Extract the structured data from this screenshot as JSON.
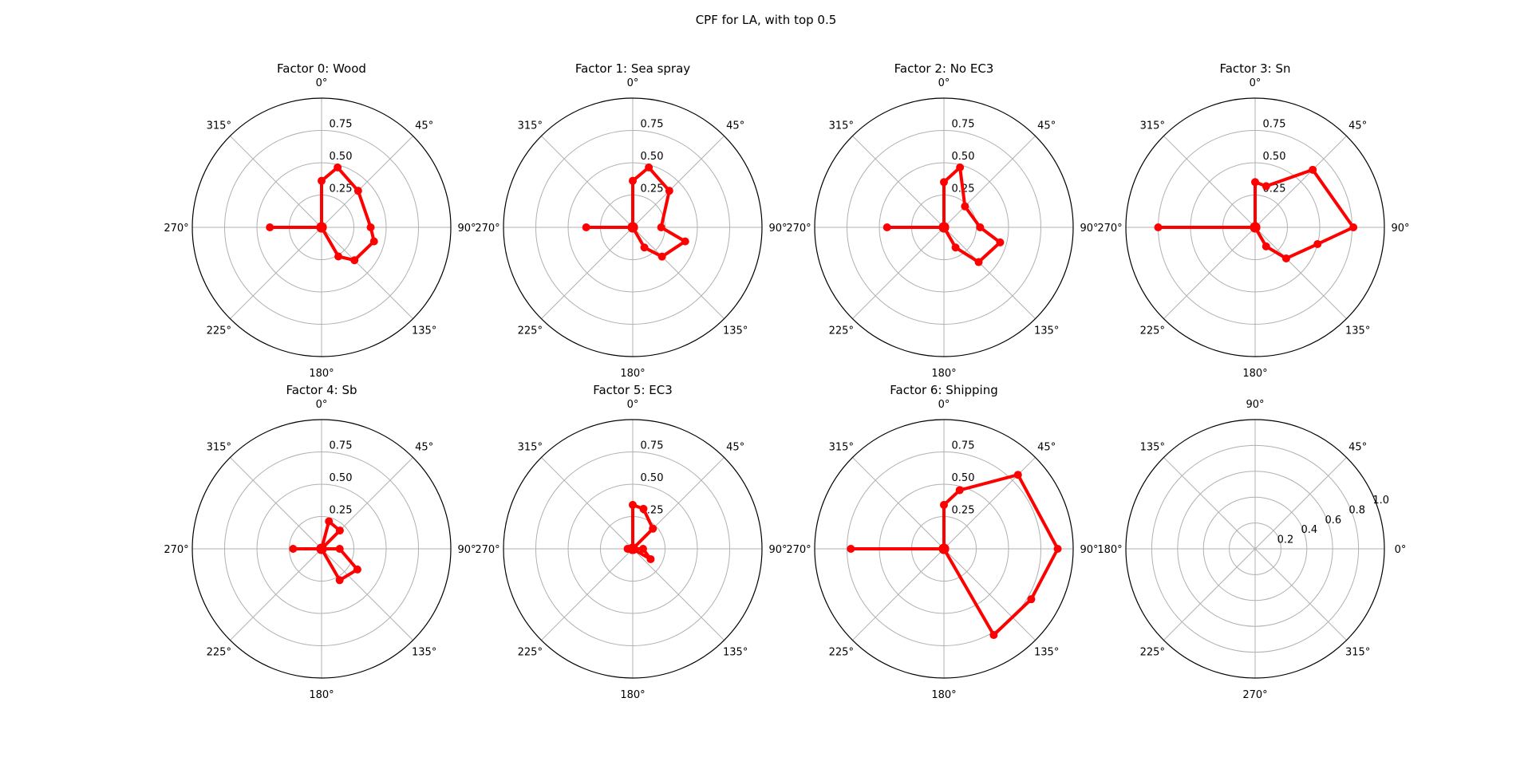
{
  "figure": {
    "title": "CPF for LA, with top 0.5",
    "trace_color": "#ff0000",
    "grid_color": "#b0b0b0",
    "frame_color": "#000000"
  },
  "chart_data": [
    {
      "type": "polar-line",
      "title": "Factor 0: Wood",
      "theta_zero": "N",
      "direction": "clockwise",
      "theta_ticks": [
        "0°",
        "45°",
        "90°",
        "135°",
        "180°",
        "225°",
        "270°",
        "315°"
      ],
      "r_ticks": [
        "0.25",
        "0.50",
        "0.75"
      ],
      "r_tick_values": [
        0.25,
        0.5,
        0.75
      ],
      "r_max": 1.0,
      "theta_deg": [
        0,
        0,
        15,
        45,
        90,
        105,
        135,
        150,
        0,
        270,
        0
      ],
      "r": [
        0,
        0.36,
        0.48,
        0.4,
        0.38,
        0.42,
        0.36,
        0.26,
        0,
        0.4,
        0
      ]
    },
    {
      "type": "polar-line",
      "title": "Factor 1: Sea spray",
      "theta_zero": "N",
      "direction": "clockwise",
      "theta_ticks": [
        "0°",
        "45°",
        "90°",
        "135°",
        "180°",
        "225°",
        "270°",
        "315°"
      ],
      "r_ticks": [
        "0.25",
        "0.50",
        "0.75"
      ],
      "r_tick_values": [
        0.25,
        0.5,
        0.75
      ],
      "r_max": 1.0,
      "theta_deg": [
        0,
        0,
        15,
        45,
        90,
        105,
        135,
        150,
        0,
        270,
        0
      ],
      "r": [
        0,
        0.36,
        0.48,
        0.4,
        0.22,
        0.42,
        0.32,
        0.18,
        0,
        0.36,
        0
      ]
    },
    {
      "type": "polar-line",
      "title": "Factor 2: No EC3",
      "theta_zero": "N",
      "direction": "clockwise",
      "theta_ticks": [
        "0°",
        "45°",
        "90°",
        "135°",
        "180°",
        "225°",
        "270°",
        "315°"
      ],
      "r_ticks": [
        "0.25",
        "0.50",
        "0.75"
      ],
      "r_tick_values": [
        0.25,
        0.5,
        0.75
      ],
      "r_max": 1.0,
      "theta_deg": [
        0,
        0,
        15,
        45,
        90,
        105,
        135,
        150,
        0,
        270,
        0
      ],
      "r": [
        0,
        0.35,
        0.48,
        0.23,
        0.28,
        0.45,
        0.38,
        0.18,
        0,
        0.44,
        0
      ]
    },
    {
      "type": "polar-line",
      "title": "Factor 3: Sn",
      "theta_zero": "N",
      "direction": "clockwise",
      "theta_ticks": [
        "0°",
        "45°",
        "90°",
        "135°",
        "180°",
        "225°",
        "270°",
        "315°"
      ],
      "r_ticks": [
        "0.25",
        "0.50",
        "0.75"
      ],
      "r_tick_values": [
        0.25,
        0.5,
        0.75
      ],
      "r_max": 1.0,
      "theta_deg": [
        0,
        0,
        15,
        45,
        90,
        105,
        135,
        150,
        0,
        270,
        0
      ],
      "r": [
        0,
        0.35,
        0.33,
        0.63,
        0.76,
        0.5,
        0.34,
        0.17,
        0,
        0.75,
        0
      ]
    },
    {
      "type": "polar-line",
      "title": "Factor 4: Sb",
      "theta_zero": "N",
      "direction": "clockwise",
      "theta_ticks": [
        "0°",
        "45°",
        "90°",
        "135°",
        "180°",
        "225°",
        "270°",
        "315°"
      ],
      "r_ticks": [
        "0.25",
        "0.50",
        "0.75"
      ],
      "r_tick_values": [
        0.25,
        0.5,
        0.75
      ],
      "r_max": 1.0,
      "theta_deg": [
        0,
        15,
        45,
        0,
        90,
        120,
        150,
        0,
        270,
        0
      ],
      "r": [
        0,
        0.22,
        0.2,
        0,
        0.14,
        0.32,
        0.28,
        0,
        0.22,
        0
      ]
    },
    {
      "type": "polar-line",
      "title": "Factor 5: EC3",
      "theta_zero": "N",
      "direction": "clockwise",
      "theta_ticks": [
        "0°",
        "45°",
        "90°",
        "135°",
        "180°",
        "225°",
        "270°",
        "315°"
      ],
      "r_ticks": [
        "0.25",
        "0.50",
        "0.75"
      ],
      "r_tick_values": [
        0.25,
        0.5,
        0.75
      ],
      "r_max": 1.0,
      "theta_deg": [
        0,
        0,
        15,
        45,
        0,
        90,
        120,
        0,
        270,
        0
      ],
      "r": [
        0,
        0.34,
        0.32,
        0.22,
        0,
        0.08,
        0.16,
        0,
        0.04,
        0
      ]
    },
    {
      "type": "polar-line",
      "title": "Factor 6: Shipping",
      "theta_zero": "N",
      "direction": "clockwise",
      "theta_ticks": [
        "0°",
        "45°",
        "90°",
        "135°",
        "180°",
        "225°",
        "270°",
        "315°"
      ],
      "r_ticks": [
        "0.25",
        "0.50",
        "0.75"
      ],
      "r_tick_values": [
        0.25,
        0.5,
        0.75
      ],
      "r_max": 1.0,
      "theta_deg": [
        0,
        0,
        15,
        45,
        90,
        120,
        150,
        0,
        270,
        0
      ],
      "r": [
        0,
        0.34,
        0.47,
        0.81,
        0.88,
        0.78,
        0.77,
        0,
        0.72,
        0
      ]
    },
    {
      "type": "polar-empty",
      "title": "",
      "theta_zero": "E",
      "direction": "counterclockwise",
      "theta_ticks": [
        "0°",
        "45°",
        "90°",
        "135°",
        "180°",
        "225°",
        "270°",
        "315°"
      ],
      "r_ticks": [
        "0.2",
        "0.4",
        "0.6",
        "0.8",
        "1.0"
      ],
      "r_tick_values": [
        0.2,
        0.4,
        0.6,
        0.8,
        1.0
      ],
      "r_max": 1.0,
      "theta_deg": [],
      "r": []
    }
  ]
}
